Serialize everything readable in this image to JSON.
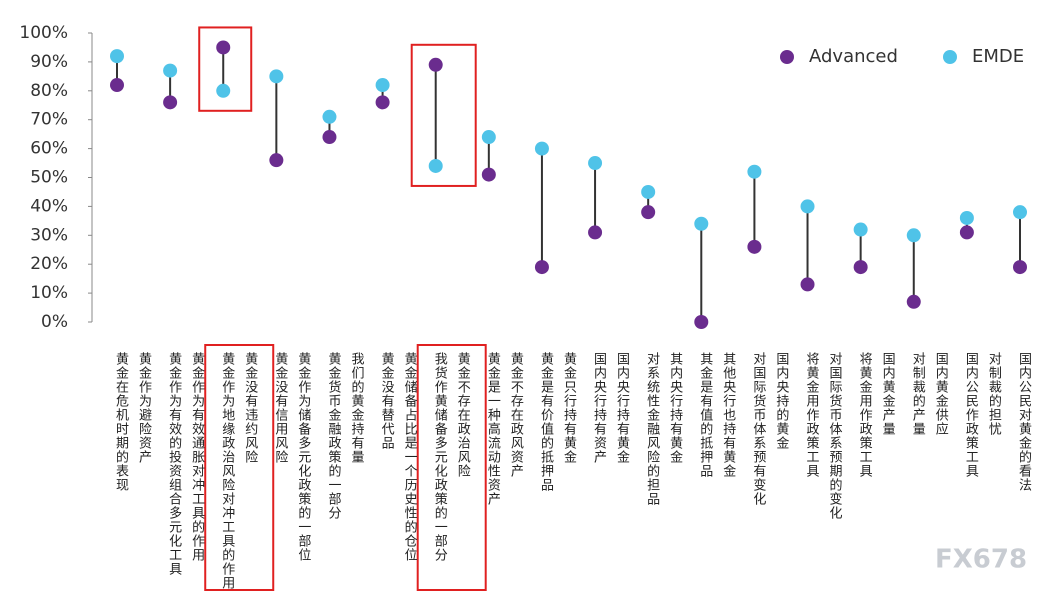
{
  "chart_data": {
    "type": "dumbbell",
    "categories": [
      "黄金在危机时期的表现\n黄金作为避险资产",
      "黄金作为有效的投资组合多元化工具\n黄金作为有效通胀对冲工具的作用",
      "黄金作为地缘政治风险对冲工具的作用\n黄金没有违约风险",
      "黄金没有信用风险\n黄金作为储备多元化政策的一部位",
      "黄金货币金融政策的一部分\n我们的黄金持有量",
      "黄金没有替代品\n黄金储备占比是一个历史性的仓位",
      "我货作黄储备多元化政策的一部分\n黄金不存在政治风险",
      "黄金是一种高流动性资产\n黄金不存在政风资产",
      "黄金是有价值的抵押品\n黄金只行持有黄金",
      "国内央行持有资产\n国内央行持有黄金",
      "对系统性金融风险的担品\n其内央行持有黄金",
      "其金是有值的抵押品\n其他央行也持有黄金",
      "对国际货币体系预有变化\n国内央持的黄金",
      "将黄金用作政策工具\n对国际货币体系预期的变化",
      "将黄金用作政策工具\n国内黄金产量",
      "对制裁的产量\n国内黄金供应",
      "国内公民作政策工具\n对制裁的担忧",
      "国内公民对黄金的看法"
    ],
    "series": [
      {
        "name": "Advanced",
        "color": "#6a2c8e",
        "values": [
          82,
          76,
          95,
          56,
          64,
          76,
          89,
          51,
          19,
          31,
          38,
          0,
          26,
          13,
          19,
          7,
          31,
          19
        ]
      },
      {
        "name": "EMDE",
        "color": "#4fc3e8",
        "values": [
          92,
          87,
          80,
          85,
          71,
          82,
          54,
          64,
          60,
          55,
          45,
          34,
          52,
          40,
          32,
          30,
          36,
          38
        ]
      }
    ],
    "ylim": [
      0,
      100
    ],
    "yticks": [
      {
        "value": 0,
        "label": "0%"
      },
      {
        "value": 10,
        "label": "10%"
      },
      {
        "value": 20,
        "label": "20%"
      },
      {
        "value": 30,
        "label": "30%"
      },
      {
        "value": 40,
        "label": "40%"
      },
      {
        "value": 50,
        "label": "50%"
      },
      {
        "value": 60,
        "label": "60%"
      },
      {
        "value": 70,
        "label": "70%"
      },
      {
        "value": 80,
        "label": "80%"
      },
      {
        "value": 90,
        "label": "90%"
      },
      {
        "value": 100,
        "label": "100%"
      }
    ],
    "highlight": [
      2,
      6
    ],
    "legend": "top-right",
    "watermark": "FX678"
  }
}
